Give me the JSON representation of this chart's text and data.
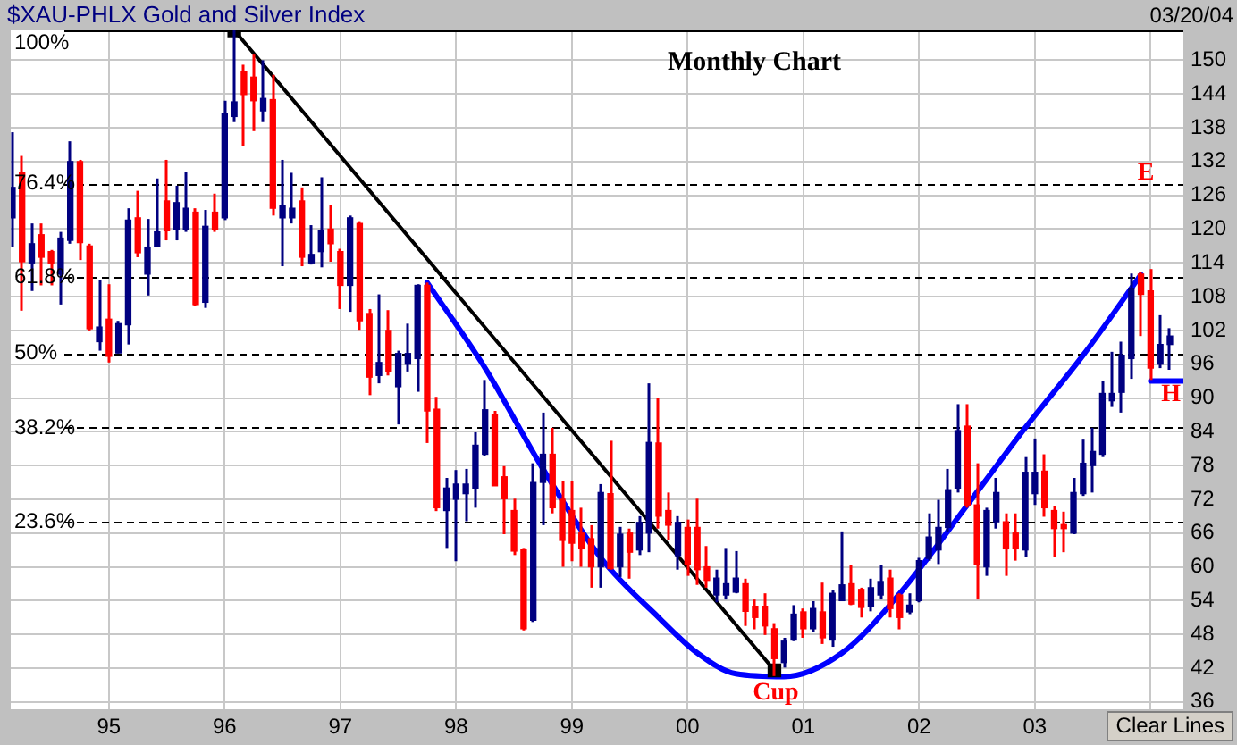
{
  "chart_data": {
    "type": "candlestick",
    "title": "$XAU-PHLX Gold and Silver Index",
    "subtitle": "Monthly Chart",
    "x": [
      "1994-03",
      "1994-04",
      "1994-05",
      "1994-06",
      "1994-07",
      "1994-08",
      "1994-09",
      "1994-10",
      "1994-11",
      "1994-12",
      "1995-01",
      "1995-02",
      "1995-03",
      "1995-04",
      "1995-05",
      "1995-06",
      "1995-07",
      "1995-08",
      "1995-09",
      "1995-10",
      "1995-11",
      "1995-12",
      "1996-01",
      "1996-02",
      "1996-03",
      "1996-04",
      "1996-05",
      "1996-06",
      "1996-07",
      "1996-08",
      "1996-09",
      "1996-10",
      "1996-11",
      "1996-12",
      "1997-01",
      "1997-02",
      "1997-03",
      "1997-04",
      "1997-05",
      "1997-06",
      "1997-07",
      "1997-08",
      "1997-09",
      "1997-10",
      "1997-11",
      "1997-12",
      "1998-01",
      "1998-02",
      "1998-03",
      "1998-04",
      "1998-05",
      "1998-06",
      "1998-07",
      "1998-08",
      "1998-09",
      "1998-10",
      "1998-11",
      "1998-12",
      "1999-01",
      "1999-02",
      "1999-03",
      "1999-04",
      "1999-05",
      "1999-06",
      "1999-07",
      "1999-08",
      "1999-09",
      "1999-10",
      "1999-11",
      "1999-12",
      "2000-01",
      "2000-02",
      "2000-03",
      "2000-04",
      "2000-05",
      "2000-06",
      "2000-07",
      "2000-08",
      "2000-09",
      "2000-10",
      "2000-11",
      "2000-12",
      "2001-01",
      "2001-02",
      "2001-03",
      "2001-04",
      "2001-05",
      "2001-06",
      "2001-07",
      "2001-08",
      "2001-09",
      "2001-10",
      "2001-11",
      "2001-12",
      "2002-01",
      "2002-02",
      "2002-03",
      "2002-04",
      "2002-05",
      "2002-06",
      "2002-07",
      "2002-08",
      "2002-09",
      "2002-10",
      "2002-11",
      "2002-12",
      "2003-01",
      "2003-02",
      "2003-03",
      "2003-04",
      "2003-05",
      "2003-06",
      "2003-07",
      "2003-08",
      "2003-09",
      "2003-10",
      "2003-11",
      "2003-12",
      "2004-01",
      "2004-02",
      "2004-03"
    ],
    "ohlc": [
      [
        122,
        137.2,
        116.8,
        127.4
      ],
      [
        130,
        133,
        105.5,
        114.2
      ],
      [
        114,
        121,
        109,
        117.4
      ],
      [
        119,
        121,
        110,
        115
      ],
      [
        116,
        116.3,
        110,
        114
      ],
      [
        112,
        119.5,
        106.6,
        118.4
      ],
      [
        118,
        135.6,
        117.4,
        132
      ],
      [
        132,
        132.3,
        114.5,
        117.6
      ],
      [
        117,
        117.4,
        102,
        102.3
      ],
      [
        100,
        111,
        98.4,
        102.6
      ],
      [
        104,
        110.2,
        96.3,
        97.4
      ],
      [
        98,
        103.7,
        97.9,
        103.2
      ],
      [
        103,
        123.7,
        99.5,
        121.6
      ],
      [
        122,
        126.8,
        115,
        115.8
      ],
      [
        112,
        121.8,
        108.2,
        116.8
      ],
      [
        117,
        129,
        116.8,
        119.5
      ],
      [
        125,
        132.3,
        118,
        119.7
      ],
      [
        120,
        127.7,
        118,
        124.7
      ],
      [
        120,
        130.2,
        119.5,
        123.7
      ],
      [
        123,
        123.7,
        106.3,
        106.6
      ],
      [
        107,
        123.4,
        106,
        120.5
      ],
      [
        123,
        126.3,
        119.5,
        120
      ],
      [
        122,
        142.8,
        121.6,
        140.5
      ],
      [
        140,
        155.3,
        139,
        142.6
      ],
      [
        148,
        149.2,
        134.7,
        143.9
      ],
      [
        147,
        151,
        137.4,
        142.8
      ],
      [
        141,
        150,
        139,
        143.2
      ],
      [
        143,
        147.4,
        122.4,
        123.7
      ],
      [
        122,
        132.3,
        113.4,
        124.2
      ],
      [
        122,
        130,
        121,
        123.7
      ],
      [
        125,
        127.4,
        113.4,
        115
      ],
      [
        114,
        120.7,
        113.7,
        115.5
      ],
      [
        116,
        129.2,
        113.2,
        119.7
      ],
      [
        120,
        124.2,
        114.2,
        117.4
      ],
      [
        116,
        116.5,
        105.8,
        110
      ],
      [
        110,
        122.4,
        105.3,
        122
      ],
      [
        121,
        121.4,
        102.1,
        103.7
      ],
      [
        105,
        105.8,
        90.5,
        93.7
      ],
      [
        94,
        108.4,
        92.6,
        96.3
      ],
      [
        102,
        105.6,
        94,
        94.7
      ],
      [
        92,
        98.4,
        85.3,
        97.9
      ],
      [
        96,
        103.2,
        94.7,
        97.9
      ],
      [
        97,
        110.2,
        91.1,
        110
      ],
      [
        110,
        110.5,
        82,
        87.7
      ],
      [
        88,
        90.2,
        69.9,
        70.5
      ],
      [
        70,
        75.8,
        63.2,
        74
      ],
      [
        72,
        77.2,
        61,
        74.7
      ],
      [
        73,
        77.4,
        68.1,
        74.7
      ],
      [
        74,
        83.9,
        70.5,
        81.6
      ],
      [
        80,
        93.2,
        79.7,
        87.9
      ],
      [
        87,
        87.7,
        74.4,
        74.4
      ],
      [
        76,
        77.9,
        65.8,
        72.1
      ],
      [
        70,
        72.1,
        62.1,
        62.8
      ],
      [
        63,
        63.2,
        48.7,
        49
      ],
      [
        50.5,
        78.4,
        50.2,
        75
      ],
      [
        75,
        87.4,
        67.4,
        80
      ],
      [
        80,
        84.7,
        69.5,
        70.5
      ],
      [
        72,
        75.3,
        60,
        64.7
      ],
      [
        70,
        75.3,
        61,
        64.2
      ],
      [
        66,
        70.5,
        60,
        63.2
      ],
      [
        65,
        67.4,
        56.3,
        60
      ],
      [
        60,
        74.7,
        56.3,
        73.2
      ],
      [
        73,
        82.4,
        59.5,
        59.7
      ],
      [
        60,
        67.1,
        58.2,
        65.8
      ],
      [
        66,
        66.8,
        57.9,
        62.6
      ],
      [
        63,
        69,
        62.1,
        67.9
      ],
      [
        66,
        92.6,
        62.6,
        82.1
      ],
      [
        82,
        90,
        66.8,
        69
      ],
      [
        70,
        73.2,
        64.7,
        67.4
      ],
      [
        62,
        69,
        59.5,
        67.9
      ],
      [
        67,
        68.4,
        58.4,
        60.5
      ],
      [
        67,
        72.1,
        56.8,
        59.5
      ],
      [
        60,
        63.7,
        56.3,
        57.6
      ],
      [
        55,
        59.5,
        53.7,
        58
      ],
      [
        55,
        63.2,
        54.2,
        57
      ],
      [
        55.5,
        62.8,
        55.3,
        58
      ],
      [
        57,
        57.9,
        49.5,
        52.1
      ],
      [
        53,
        54.2,
        48.9,
        51
      ],
      [
        53,
        55.3,
        47.9,
        49.5
      ],
      [
        49,
        50,
        40.6,
        43.7
      ],
      [
        43,
        47.4,
        42.1,
        46.8
      ],
      [
        47,
        53.2,
        46.8,
        51.6
      ],
      [
        52,
        52.6,
        47.4,
        49
      ],
      [
        49,
        53.9,
        48.4,
        52.6
      ],
      [
        52,
        57.2,
        46.3,
        47.4
      ],
      [
        47,
        55.8,
        45.8,
        55.3
      ],
      [
        54,
        66.3,
        53.9,
        56.8
      ],
      [
        57,
        60.3,
        53.2,
        53.4
      ],
      [
        56,
        56.3,
        51,
        52.8
      ],
      [
        53,
        57.9,
        52.1,
        56.3
      ],
      [
        55,
        60.3,
        54.2,
        57.4
      ],
      [
        58,
        59.5,
        51,
        52.6
      ],
      [
        55,
        55.3,
        48.9,
        51
      ],
      [
        52,
        55.3,
        51.6,
        53.2
      ],
      [
        54,
        61.6,
        53.7,
        61.1
      ],
      [
        61.5,
        69.5,
        61.1,
        65.3
      ],
      [
        63,
        71.9,
        60.5,
        67
      ],
      [
        67,
        77.4,
        66.3,
        73.7
      ],
      [
        74,
        88.9,
        73.2,
        84.2
      ],
      [
        85,
        88.9,
        70.5,
        71
      ],
      [
        71,
        78.4,
        54.2,
        60.5
      ],
      [
        60,
        70.5,
        58.4,
        70
      ],
      [
        68,
        75.8,
        66.8,
        73.2
      ],
      [
        68,
        69.5,
        58.4,
        63.2
      ],
      [
        66,
        69.5,
        61.1,
        63.2
      ],
      [
        63,
        79.5,
        61.8,
        76.8
      ],
      [
        73,
        82.8,
        71,
        76.8
      ],
      [
        77,
        80,
        68.9,
        70.5
      ],
      [
        70,
        70.8,
        61.8,
        66.8
      ],
      [
        67.5,
        69.8,
        62.6,
        66.8
      ],
      [
        66,
        75.8,
        65.8,
        73.2
      ],
      [
        73,
        82.6,
        72.6,
        78.4
      ],
      [
        78,
        84.7,
        73.2,
        80.5
      ],
      [
        80,
        93,
        79.5,
        90.8
      ],
      [
        89.5,
        98.2,
        88.4,
        90.8
      ],
      [
        91,
        100,
        87.4,
        97.6
      ],
      [
        97,
        112.1,
        93.4,
        109.5
      ],
      [
        112,
        112.3,
        101,
        108.4
      ],
      [
        109,
        112.9,
        93.2,
        95.3
      ],
      [
        96,
        104.7,
        95.3,
        99.5
      ],
      [
        99.5,
        102.4,
        95,
        101
      ]
    ],
    "colors": [
      "#000080",
      "#ff0000",
      "#000080",
      "#ff0000",
      "#ff0000",
      "#000080",
      "#000080",
      "#ff0000",
      "#ff0000",
      "#000080",
      "#ff0000",
      "#000080",
      "#000080",
      "#ff0000",
      "#000080",
      "#000080",
      "#ff0000",
      "#000080",
      "#000080",
      "#ff0000",
      "#000080",
      "#ff0000",
      "#000080",
      "#000080",
      "#ff0000",
      "#ff0000",
      "#000080",
      "#ff0000",
      "#000080",
      "#000080",
      "#ff0000",
      "#000080",
      "#000080",
      "#ff0000",
      "#ff0000",
      "#000080",
      "#ff0000",
      "#ff0000",
      "#000080",
      "#ff0000",
      "#000080",
      "#000080",
      "#000080",
      "#ff0000",
      "#ff0000",
      "#000080",
      "#000080",
      "#000080",
      "#000080",
      "#000080",
      "#ff0000",
      "#ff0000",
      "#ff0000",
      "#ff0000",
      "#000080",
      "#000080",
      "#ff0000",
      "#ff0000",
      "#ff0000",
      "#ff0000",
      "#ff0000",
      "#000080",
      "#ff0000",
      "#000080",
      "#ff0000",
      "#000080",
      "#000080",
      "#ff0000",
      "#ff0000",
      "#000080",
      "#ff0000",
      "#ff0000",
      "#ff0000",
      "#000080",
      "#000080",
      "#000080",
      "#ff0000",
      "#ff0000",
      "#ff0000",
      "#ff0000",
      "#000080",
      "#000080",
      "#ff0000",
      "#000080",
      "#ff0000",
      "#000080",
      "#000080",
      "#ff0000",
      "#ff0000",
      "#000080",
      "#000080",
      "#ff0000",
      "#ff0000",
      "#000080",
      "#000080",
      "#000080",
      "#000080",
      "#000080",
      "#000080",
      "#ff0000",
      "#ff0000",
      "#000080",
      "#000080",
      "#ff0000",
      "#ff0000",
      "#000080",
      "#000080",
      "#ff0000",
      "#ff0000",
      "#ff0000",
      "#000080",
      "#000080",
      "#000080",
      "#000080",
      "#000080",
      "#000080",
      "#000080",
      "#ff0000",
      "#ff0000",
      "#000080",
      "#000080"
    ],
    "series": [
      {
        "type": "line",
        "color": "#000000",
        "marker": "square",
        "x": [
          "1996-02",
          "2000-10"
        ],
        "values": [
          155.3,
          41.6
        ]
      },
      {
        "type": "line",
        "color": "#0000ff",
        "marker": "none",
        "x": [
          "1997-10",
          "1998-04",
          "1998-10",
          "1999-04",
          "1999-10",
          "2000-02",
          "2000-06",
          "2000-11",
          "2001-05",
          "2001-11",
          "2002-06",
          "2002-12",
          "2003-06",
          "2003-12"
        ],
        "values": [
          110.5,
          95.3,
          77.4,
          61.6,
          51,
          44.7,
          41,
          40.5,
          44.7,
          55.3,
          71,
          84.7,
          97.6,
          111.9
        ]
      },
      {
        "type": "line",
        "color": "#0000ff",
        "marker": "none",
        "x": [
          "2004-01",
          "2004-04-13"
        ],
        "values": [
          93,
          93
        ]
      }
    ],
    "xlim": [
      "1994-02-26",
      "2004-04-13"
    ],
    "xticks": [
      {
        "value": "1995-01",
        "label": "95"
      },
      {
        "value": "1996-01",
        "label": "96"
      },
      {
        "value": "1997-01",
        "label": "97"
      },
      {
        "value": "1998-01",
        "label": "98"
      },
      {
        "value": "1999-01",
        "label": "99"
      },
      {
        "value": "2000-01",
        "label": "00"
      },
      {
        "value": "2001-01",
        "label": "01"
      },
      {
        "value": "2002-01",
        "label": "02"
      },
      {
        "value": "2003-01",
        "label": "03"
      },
      {
        "value": "2004-01",
        "label": null
      }
    ],
    "ylim": [
      34.7,
      155.3
    ],
    "yticks": [
      36,
      42,
      48,
      54,
      60,
      66,
      72,
      78,
      84,
      90,
      96,
      102,
      108,
      114,
      120,
      126,
      132,
      138,
      144,
      150
    ],
    "grid": true,
    "ref_lines": [
      {
        "axis": "y",
        "value": 155.3,
        "color": "#000000",
        "line_style": "solid"
      },
      {
        "axis": "y",
        "value": 128.1,
        "color": "#000000",
        "line_style": "dashed"
      },
      {
        "axis": "y",
        "value": 111.4,
        "color": "#000000",
        "line_style": "dashed"
      },
      {
        "axis": "y",
        "value": 97.9,
        "color": "#000000",
        "line_style": "dashed"
      },
      {
        "axis": "y",
        "value": 84.7,
        "color": "#000000",
        "line_style": "dashed"
      },
      {
        "axis": "y",
        "value": 67.9,
        "color": "#000000",
        "line_style": "dashed"
      }
    ],
    "annotations": [
      "03/20/04",
      "Clear Lines",
      "Cup",
      "E",
      "H",
      "100%",
      "76.4%",
      "61.8%",
      "50%",
      "38.2%",
      "23.6%"
    ]
  }
}
